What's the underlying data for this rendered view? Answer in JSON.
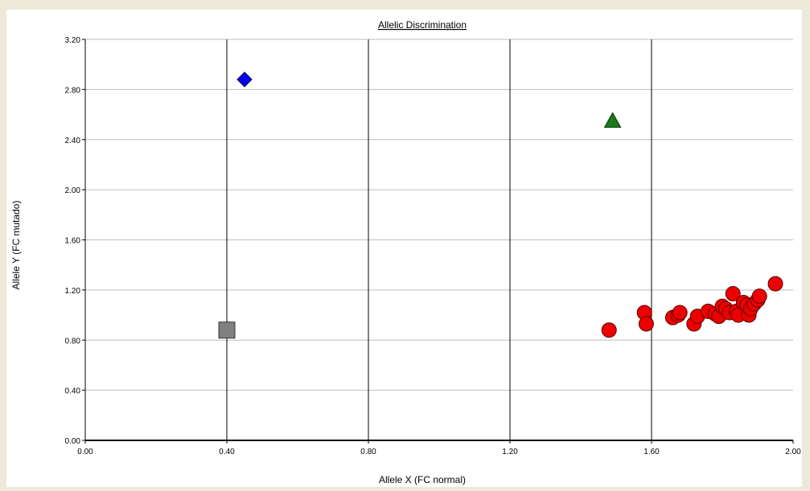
{
  "chart_data": {
    "type": "scatter",
    "title": "Allelic Discrimination",
    "xlabel": "Allele X (FC normal)",
    "ylabel": "Allele Y (FC mutado)",
    "xlim": [
      0.0,
      2.0
    ],
    "ylim": [
      0.0,
      3.2
    ],
    "xticks": [
      "0.00",
      "0.40",
      "0.80",
      "1.20",
      "1.60",
      "2.00"
    ],
    "yticks": [
      "0.00",
      "0.40",
      "0.80",
      "1.20",
      "1.60",
      "2.00",
      "2.40",
      "2.80",
      "3.20"
    ],
    "grid": {
      "vertical_major": [
        0.4,
        0.8,
        1.2,
        1.6
      ],
      "horizontal": true
    },
    "series": [
      {
        "marker": "diamond",
        "color": "#0000ee",
        "points": [
          [
            0.45,
            2.88
          ]
        ]
      },
      {
        "marker": "triangle",
        "color": "#1a7a1a",
        "points": [
          [
            1.49,
            2.55
          ]
        ]
      },
      {
        "marker": "square",
        "color": "#808080",
        "points": [
          [
            0.4,
            0.88
          ]
        ]
      },
      {
        "marker": "circle",
        "color": "#ee0000",
        "points": [
          [
            1.48,
            0.88
          ],
          [
            1.58,
            1.02
          ],
          [
            1.585,
            0.93
          ],
          [
            1.66,
            0.98
          ],
          [
            1.675,
            1.0
          ],
          [
            1.68,
            1.02
          ],
          [
            1.72,
            0.93
          ],
          [
            1.73,
            0.99
          ],
          [
            1.76,
            1.03
          ],
          [
            1.78,
            1.01
          ],
          [
            1.79,
            0.99
          ],
          [
            1.8,
            1.07
          ],
          [
            1.81,
            1.05
          ],
          [
            1.82,
            1.02
          ],
          [
            1.83,
            1.17
          ],
          [
            1.84,
            1.03
          ],
          [
            1.845,
            1.0
          ],
          [
            1.86,
            1.1
          ],
          [
            1.87,
            1.08
          ],
          [
            1.875,
            1.0
          ],
          [
            1.88,
            1.05
          ],
          [
            1.89,
            1.09
          ],
          [
            1.9,
            1.12
          ],
          [
            1.905,
            1.15
          ],
          [
            1.95,
            1.25
          ]
        ]
      }
    ]
  }
}
